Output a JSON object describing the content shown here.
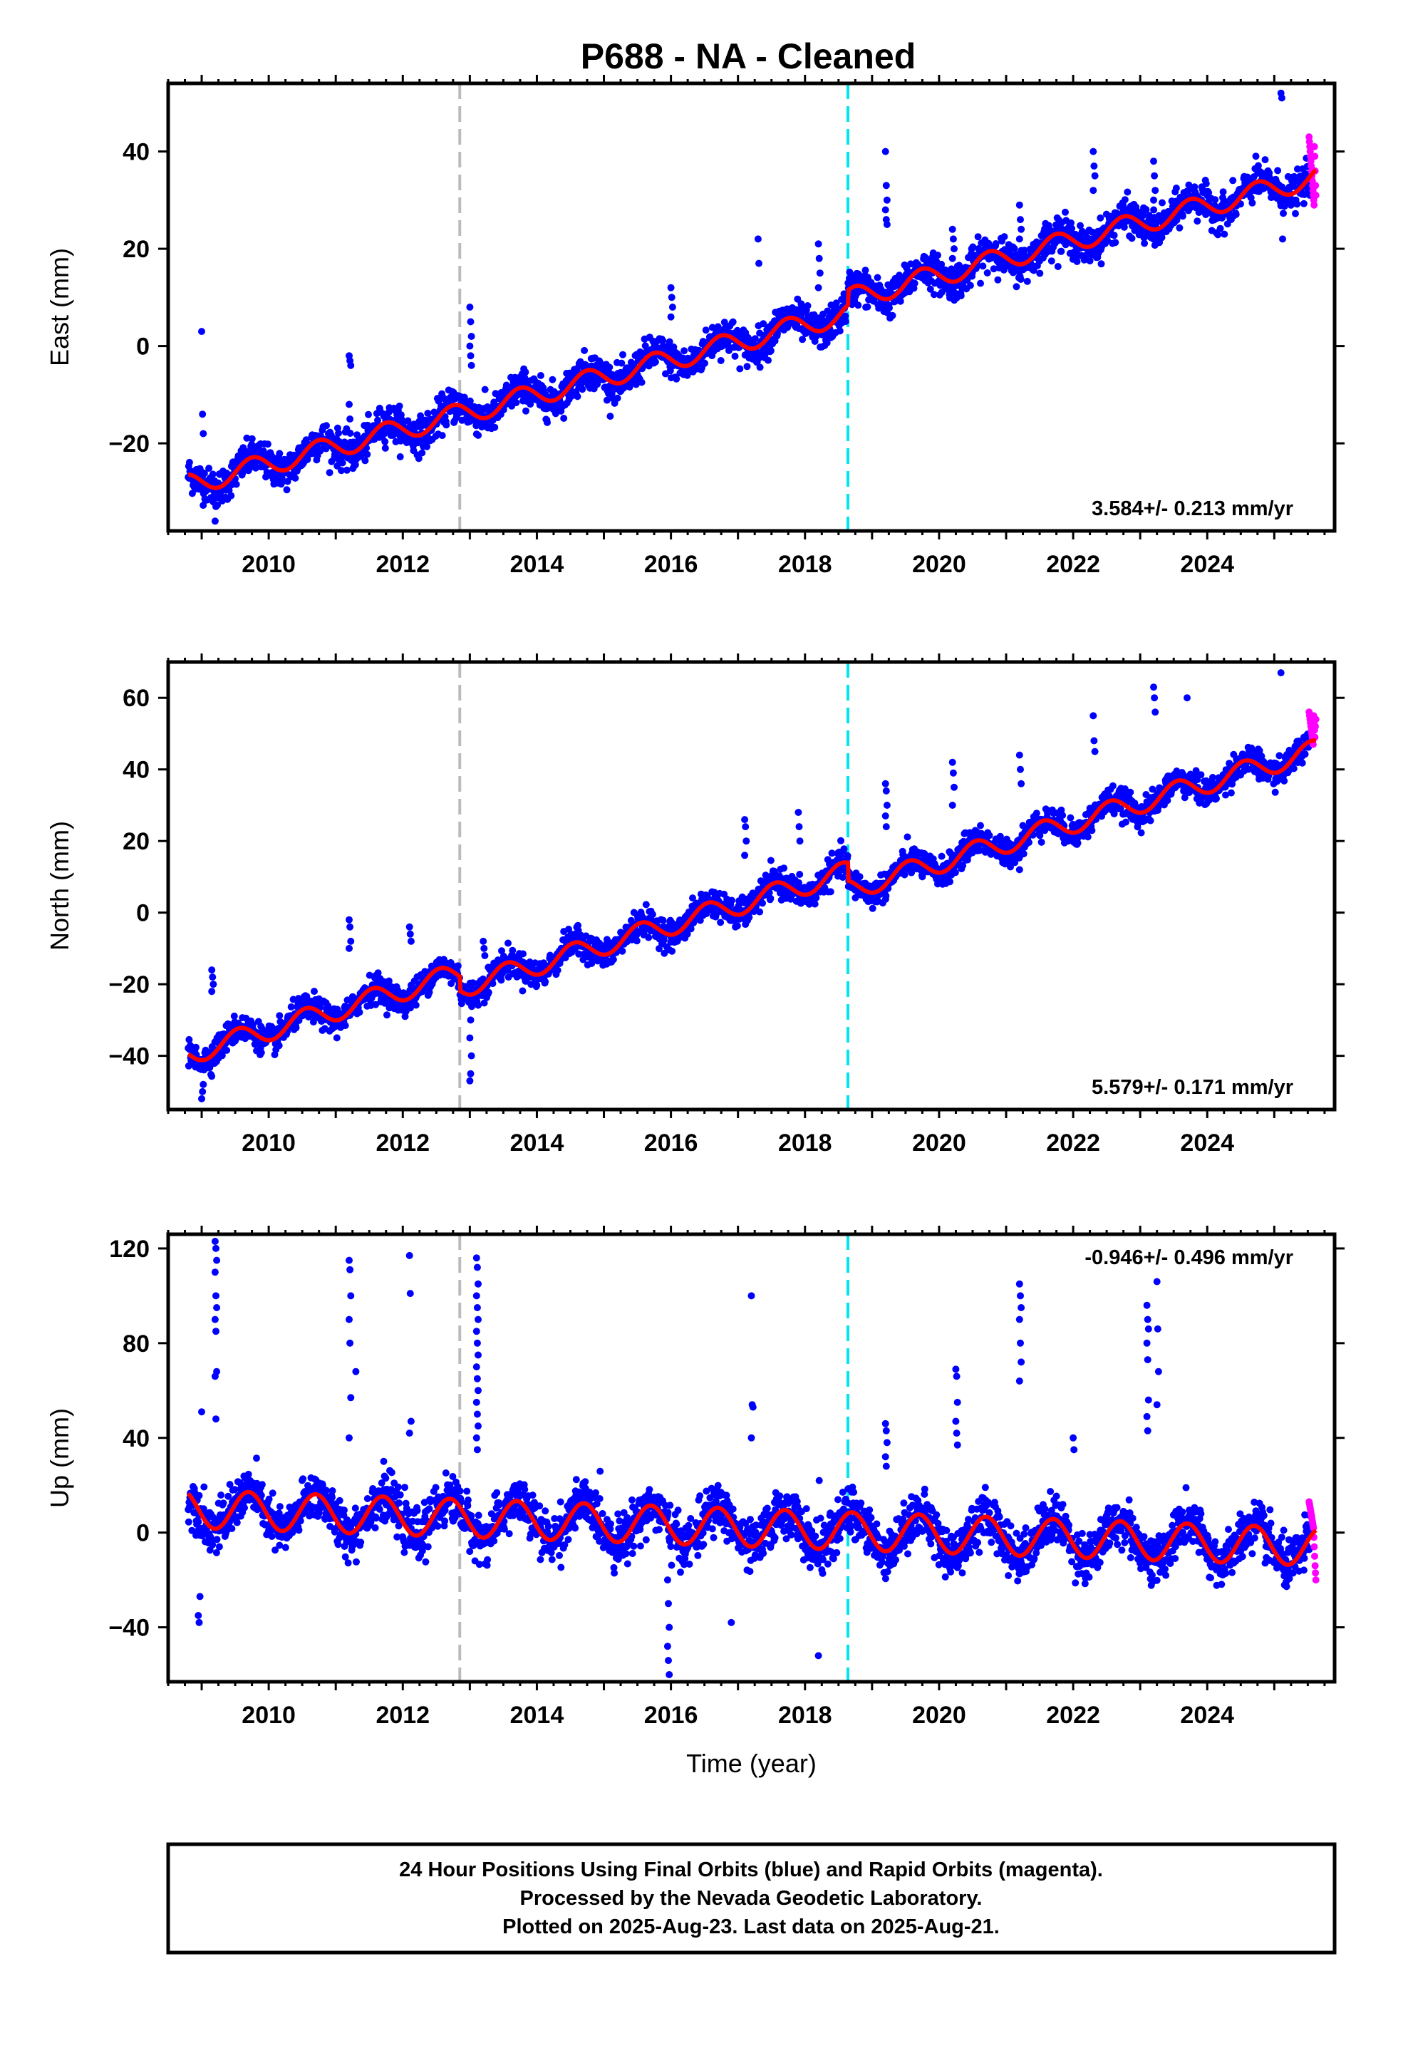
{
  "title": "P688  - NA - Cleaned",
  "footer": {
    "line1": "24 Hour Positions Using Final Orbits (blue) and Rapid Orbits (magenta).",
    "line2": "Processed by the Nevada Geodetic Laboratory.",
    "line3": "Plotted on 2025-Aug-23. Last data on 2025-Aug-21."
  },
  "colors": {
    "final_orbits": "#0000ff",
    "rapid_orbits": "#ff00ff",
    "model_fit": "#ff0000",
    "equipment_change_line": "#bbbbbb",
    "event_line": "#00e5ee",
    "frame": "#000000"
  },
  "chart_data": [
    {
      "type": "scatter",
      "name": "east",
      "ylabel": "East (mm)",
      "xlabel": "",
      "xlim": [
        2008.5,
        2025.9
      ],
      "ylim": [
        -38,
        54
      ],
      "x_ticks": [
        2010,
        2012,
        2014,
        2016,
        2018,
        2020,
        2022,
        2024
      ],
      "y_ticks": [
        -20,
        0,
        20,
        40
      ],
      "rate": "3.584+/- 0.213 mm/yr",
      "rate_position": "bottom-right",
      "vertical_lines": [
        {
          "x": 2012.85,
          "style": "dashed",
          "color": "gray"
        },
        {
          "x": 2018.64,
          "style": "dashed",
          "color": "cyan"
        }
      ],
      "model": {
        "start_x": 2008.8,
        "end_x": 2025.62,
        "trend_start": -28.5,
        "rate_mm_yr": 3.58,
        "annual_amplitude": 2.2,
        "annual_phase_year": 0.75,
        "offsets": [
          {
            "x": 2018.64,
            "size": 3.0
          }
        ]
      },
      "noise_sd": 1.8,
      "spikes": [
        {
          "x": 2009.0,
          "values": [
            3,
            -14,
            -18
          ]
        },
        {
          "x": 2009.2,
          "values": [
            -36,
            -33,
            -31
          ]
        },
        {
          "x": 2011.2,
          "values": [
            -2,
            -3,
            -4,
            -12,
            -15
          ]
        },
        {
          "x": 2013.0,
          "values": [
            8,
            5,
            2,
            0,
            -2,
            -4
          ]
        },
        {
          "x": 2016.0,
          "values": [
            12,
            10,
            8,
            6
          ]
        },
        {
          "x": 2017.3,
          "values": [
            22,
            17
          ]
        },
        {
          "x": 2018.2,
          "values": [
            21,
            18,
            15,
            12
          ]
        },
        {
          "x": 2019.2,
          "values": [
            40,
            33,
            30,
            28,
            26,
            25
          ]
        },
        {
          "x": 2020.2,
          "values": [
            24,
            22,
            20,
            18
          ]
        },
        {
          "x": 2021.2,
          "values": [
            29,
            26,
            24,
            22
          ]
        },
        {
          "x": 2022.3,
          "values": [
            40,
            37,
            35,
            32
          ]
        },
        {
          "x": 2023.2,
          "values": [
            38,
            35,
            32,
            30
          ]
        },
        {
          "x": 2025.1,
          "values": [
            52,
            51,
            22
          ]
        }
      ],
      "rapid": {
        "x_start": 2025.52,
        "x_end": 2025.62,
        "values": [
          43,
          42,
          41,
          40,
          39,
          38,
          37,
          36,
          35,
          34,
          33,
          32,
          31,
          30,
          29,
          41,
          39,
          36,
          33,
          31
        ]
      }
    },
    {
      "type": "scatter",
      "name": "north",
      "ylabel": "North (mm)",
      "xlabel": "",
      "xlim": [
        2008.5,
        2025.9
      ],
      "ylim": [
        -55,
        70
      ],
      "x_ticks": [
        2010,
        2012,
        2014,
        2016,
        2018,
        2020,
        2022,
        2024
      ],
      "y_ticks": [
        -40,
        -20,
        0,
        20,
        40,
        60
      ],
      "rate": "5.579+/- 0.171 mm/yr",
      "rate_position": "bottom-right",
      "vertical_lines": [
        {
          "x": 2012.85,
          "style": "dashed",
          "color": "gray"
        },
        {
          "x": 2018.64,
          "style": "dashed",
          "color": "cyan"
        }
      ],
      "model": {
        "start_x": 2008.8,
        "end_x": 2025.62,
        "trend_start": -39.5,
        "rate_mm_yr": 5.58,
        "annual_amplitude": 3.0,
        "annual_phase_year": 0.55,
        "offsets": [
          {
            "x": 2012.85,
            "size": -4.0
          },
          {
            "x": 2018.64,
            "size": -5.0
          }
        ]
      },
      "noise_sd": 1.9,
      "spikes": [
        {
          "x": 2009.0,
          "values": [
            -52,
            -50,
            -48
          ]
        },
        {
          "x": 2009.15,
          "values": [
            -16,
            -18,
            -20,
            -22
          ]
        },
        {
          "x": 2011.2,
          "values": [
            -2,
            -4,
            -8,
            -10
          ]
        },
        {
          "x": 2012.1,
          "values": [
            -4,
            -6,
            -8
          ]
        },
        {
          "x": 2013.0,
          "values": [
            -47,
            -45,
            -40,
            -35,
            -30
          ]
        },
        {
          "x": 2013.2,
          "values": [
            -8,
            -10,
            -12
          ]
        },
        {
          "x": 2017.1,
          "values": [
            26,
            24,
            20,
            16
          ]
        },
        {
          "x": 2017.9,
          "values": [
            28,
            24,
            20
          ]
        },
        {
          "x": 2019.2,
          "values": [
            36,
            34,
            30,
            27,
            24
          ]
        },
        {
          "x": 2020.2,
          "values": [
            42,
            39,
            35,
            30
          ]
        },
        {
          "x": 2021.2,
          "values": [
            44,
            40,
            36,
            12
          ]
        },
        {
          "x": 2022.3,
          "values": [
            55,
            48,
            45
          ]
        },
        {
          "x": 2023.2,
          "values": [
            63,
            60,
            56
          ]
        },
        {
          "x": 2023.7,
          "values": [
            60
          ]
        },
        {
          "x": 2025.1,
          "values": [
            67
          ]
        }
      ],
      "rapid": {
        "x_start": 2025.52,
        "x_end": 2025.62,
        "values": [
          56,
          55,
          54,
          53,
          52,
          51,
          50,
          49,
          48,
          47,
          55,
          53,
          51,
          49,
          52,
          54
        ]
      }
    },
    {
      "type": "scatter",
      "name": "up",
      "ylabel": "Up (mm)",
      "xlabel": "Time (year)",
      "xlim": [
        2008.5,
        2025.9
      ],
      "ylim": [
        -63,
        126
      ],
      "x_ticks": [
        2010,
        2012,
        2014,
        2016,
        2018,
        2020,
        2022,
        2024
      ],
      "y_ticks": [
        -40,
        0,
        40,
        80,
        120
      ],
      "rate": "-0.946+/- 0.496 mm/yr",
      "rate_position": "top-right",
      "vertical_lines": [
        {
          "x": 2012.85,
          "style": "dashed",
          "color": "gray"
        },
        {
          "x": 2018.64,
          "style": "dashed",
          "color": "cyan"
        }
      ],
      "model": {
        "start_x": 2008.8,
        "end_x": 2025.62,
        "trend_start": 10.0,
        "rate_mm_yr": -0.95,
        "annual_amplitude": 8.0,
        "annual_phase_year": 0.7,
        "offsets": []
      },
      "noise_sd": 5.0,
      "spikes": [
        {
          "x": 2008.95,
          "values": [
            -35,
            -38,
            -27
          ]
        },
        {
          "x": 2009.0,
          "values": [
            51
          ]
        },
        {
          "x": 2009.2,
          "values": [
            123,
            120,
            115,
            110,
            100,
            95,
            90,
            85,
            68,
            66,
            48
          ]
        },
        {
          "x": 2011.2,
          "values": [
            115,
            111,
            100,
            90,
            80,
            57,
            40
          ]
        },
        {
          "x": 2011.3,
          "values": [
            68
          ]
        },
        {
          "x": 2012.1,
          "values": [
            117,
            101,
            47,
            42
          ]
        },
        {
          "x": 2013.1,
          "values": [
            116,
            112,
            105,
            100,
            95,
            90,
            85,
            80,
            75,
            70,
            65,
            60,
            55,
            50,
            45,
            40,
            35
          ]
        },
        {
          "x": 2015.95,
          "values": [
            -20,
            -30,
            -40,
            -48,
            -54,
            -60
          ]
        },
        {
          "x": 2017.2,
          "values": [
            100,
            54,
            53,
            40
          ]
        },
        {
          "x": 2016.9,
          "values": [
            -38
          ]
        },
        {
          "x": 2018.2,
          "values": [
            -52,
            22
          ]
        },
        {
          "x": 2019.2,
          "values": [
            46,
            43,
            38,
            32,
            28
          ]
        },
        {
          "x": 2020.25,
          "values": [
            69,
            66,
            55,
            47,
            42,
            37
          ]
        },
        {
          "x": 2021.2,
          "values": [
            105,
            100,
            95,
            90,
            80,
            72,
            64
          ]
        },
        {
          "x": 2022.0,
          "values": [
            40,
            35
          ]
        },
        {
          "x": 2023.1,
          "values": [
            96,
            90,
            86,
            80,
            73,
            56,
            49,
            43
          ]
        },
        {
          "x": 2023.25,
          "values": [
            106,
            86,
            68,
            54
          ]
        }
      ],
      "rapid": {
        "x_start": 2025.52,
        "x_end": 2025.62,
        "values": [
          13,
          12,
          11,
          10,
          9,
          8,
          7,
          6,
          5,
          4,
          3,
          2,
          -2,
          -6,
          -10,
          -14,
          -17,
          -20
        ]
      }
    }
  ]
}
